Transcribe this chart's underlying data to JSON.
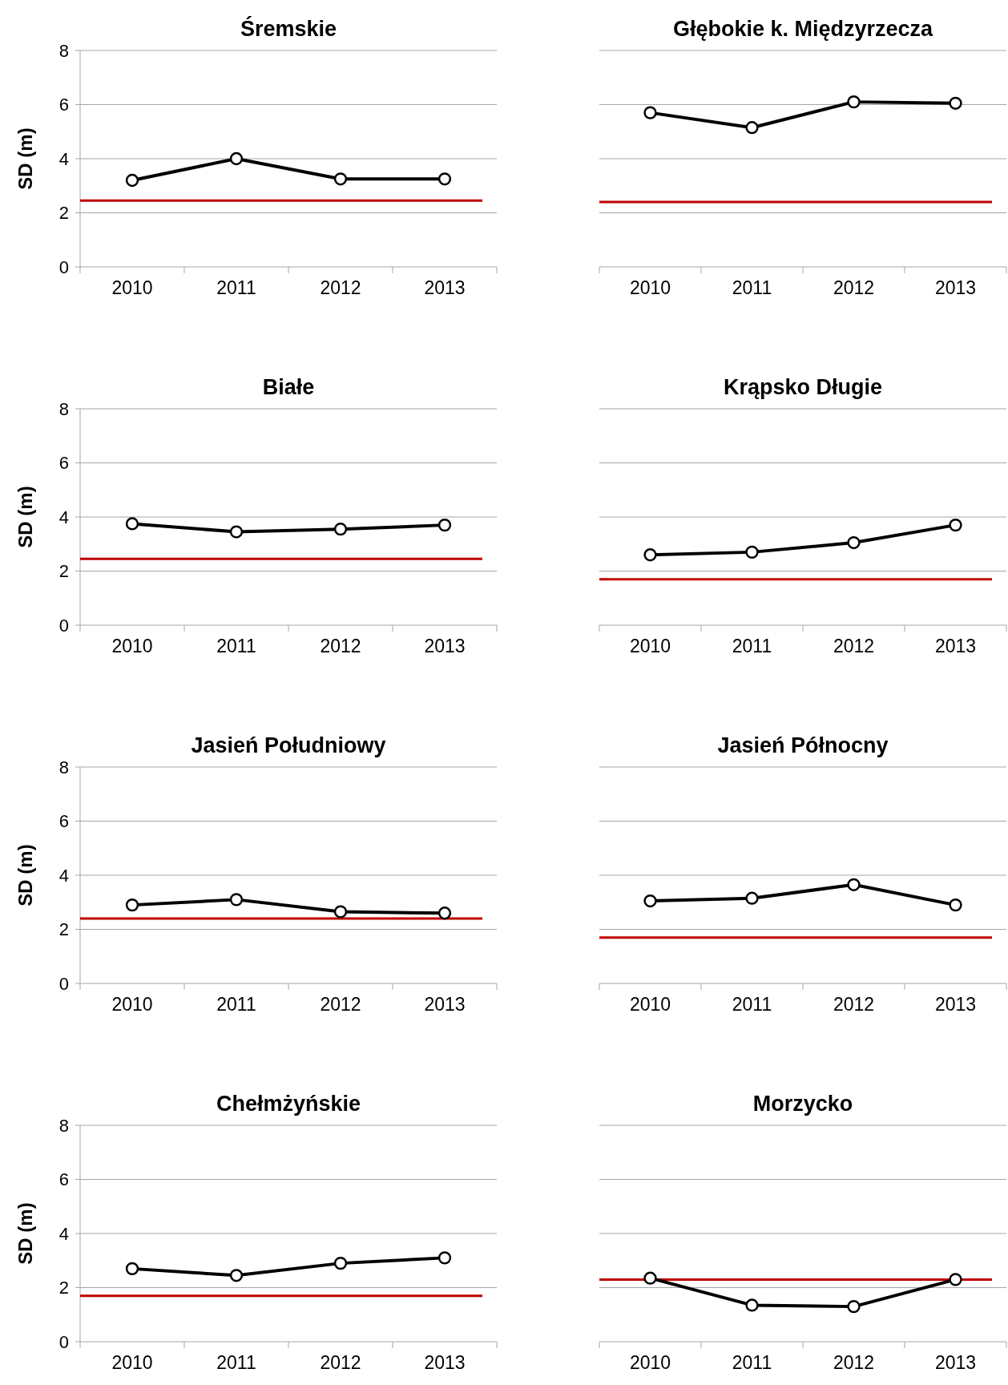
{
  "chart_data": [
    {
      "type": "line",
      "title": "Śremskie",
      "ylabel": "SD (m)",
      "categories": [
        "2010",
        "2011",
        "2012",
        "2013"
      ],
      "series": [
        {
          "color": "#000000",
          "values": [
            3.2,
            4.0,
            3.25,
            3.25
          ]
        }
      ],
      "ylim": [
        0,
        8
      ],
      "yticks": [
        0,
        2,
        4,
        6,
        8
      ],
      "grid": "y",
      "marker": "circle",
      "ref_lines": [
        {
          "axis": "y",
          "value": 2.45,
          "color": "#c00000"
        }
      ]
    },
    {
      "type": "line",
      "title": "Głębokie k. Międzyrzecza",
      "categories": [
        "2010",
        "2011",
        "2012",
        "2013"
      ],
      "series": [
        {
          "color": "#000000",
          "values": [
            5.7,
            5.15,
            6.1,
            6.05
          ]
        }
      ],
      "ylim": [
        0,
        8
      ],
      "yticks": [
        0,
        2,
        4,
        6,
        8
      ],
      "grid": "y",
      "marker": "circle",
      "tick_labels": "x",
      "ref_lines": [
        {
          "axis": "y",
          "value": 2.4,
          "color": "#c00000"
        }
      ]
    },
    {
      "type": "line",
      "title": "Białe",
      "ylabel": "SD (m)",
      "categories": [
        "2010",
        "2011",
        "2012",
        "2013"
      ],
      "series": [
        {
          "color": "#000000",
          "values": [
            3.75,
            3.45,
            3.55,
            3.7
          ]
        }
      ],
      "ylim": [
        0,
        8
      ],
      "yticks": [
        0,
        2,
        4,
        6,
        8
      ],
      "grid": "y",
      "marker": "circle",
      "ref_lines": [
        {
          "axis": "y",
          "value": 2.45,
          "color": "#c00000"
        }
      ]
    },
    {
      "type": "line",
      "title": "Krąpsko Długie",
      "categories": [
        "2010",
        "2011",
        "2012",
        "2013"
      ],
      "series": [
        {
          "color": "#000000",
          "values": [
            2.6,
            2.7,
            3.05,
            3.7
          ]
        }
      ],
      "ylim": [
        0,
        8
      ],
      "yticks": [
        0,
        2,
        4,
        6,
        8
      ],
      "grid": "y",
      "marker": "circle",
      "tick_labels": "x",
      "ref_lines": [
        {
          "axis": "y",
          "value": 1.7,
          "color": "#c00000"
        }
      ]
    },
    {
      "type": "line",
      "title": "Jasień  Południowy",
      "ylabel": "SD (m)",
      "categories": [
        "2010",
        "2011",
        "2012",
        "2013"
      ],
      "series": [
        {
          "color": "#000000",
          "values": [
            2.9,
            3.1,
            2.65,
            2.6
          ]
        }
      ],
      "ylim": [
        0,
        8
      ],
      "yticks": [
        0,
        2,
        4,
        6,
        8
      ],
      "grid": "y",
      "marker": "circle",
      "ref_lines": [
        {
          "axis": "y",
          "value": 2.4,
          "color": "#c00000"
        }
      ]
    },
    {
      "type": "line",
      "title": "Jasień Północny",
      "categories": [
        "2010",
        "2011",
        "2012",
        "2013"
      ],
      "series": [
        {
          "color": "#000000",
          "values": [
            3.05,
            3.15,
            3.65,
            2.9
          ]
        }
      ],
      "ylim": [
        0,
        8
      ],
      "yticks": [
        0,
        2,
        4,
        6,
        8
      ],
      "grid": "y",
      "marker": "circle",
      "tick_labels": "x",
      "ref_lines": [
        {
          "axis": "y",
          "value": 1.7,
          "color": "#c00000"
        }
      ]
    },
    {
      "type": "line",
      "title": "Chełmżyńskie",
      "ylabel": "SD (m)",
      "categories": [
        "2010",
        "2011",
        "2012",
        "2013"
      ],
      "series": [
        {
          "color": "#000000",
          "values": [
            2.7,
            2.45,
            2.9,
            3.1
          ]
        }
      ],
      "ylim": [
        0,
        8
      ],
      "yticks": [
        0,
        2,
        4,
        6,
        8
      ],
      "grid": "y",
      "marker": "circle",
      "ref_lines": [
        {
          "axis": "y",
          "value": 1.7,
          "color": "#c00000"
        }
      ]
    },
    {
      "type": "line",
      "title": "Morzycko",
      "categories": [
        "2010",
        "2011",
        "2012",
        "2013"
      ],
      "series": [
        {
          "color": "#000000",
          "values": [
            2.35,
            1.35,
            1.3,
            2.3
          ]
        }
      ],
      "ylim": [
        0,
        8
      ],
      "yticks": [
        0,
        2,
        4,
        6,
        8
      ],
      "grid": "y",
      "marker": "circle",
      "tick_labels": "x",
      "ref_lines": [
        {
          "axis": "y",
          "value": 2.3,
          "color": "#c00000"
        }
      ]
    }
  ]
}
